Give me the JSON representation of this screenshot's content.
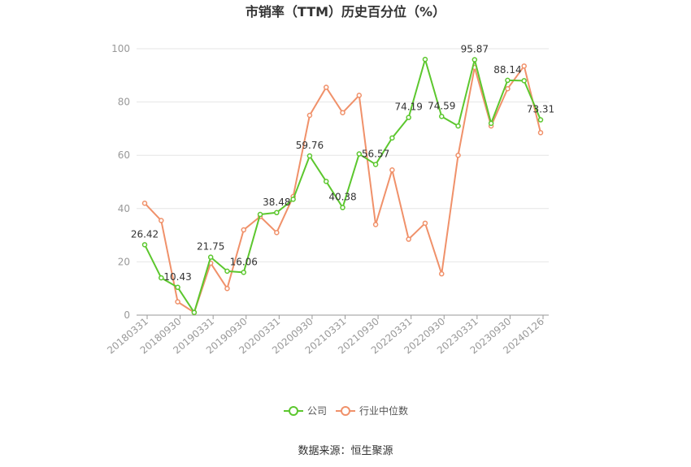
{
  "chart_data": {
    "type": "line",
    "title": "市销率（TTM）历史百分位（%）",
    "xlabel": "",
    "ylabel": "",
    "ylim": [
      0,
      100
    ],
    "yticks": [
      0,
      20,
      40,
      60,
      80,
      100
    ],
    "grid": true,
    "legend_position": "bottom-center",
    "x": [
      "20180331",
      "20180630",
      "20180930",
      "20181231",
      "20190331",
      "20190630",
      "20190930",
      "20191231",
      "20200331",
      "20200630",
      "20200930",
      "20201231",
      "20210331",
      "20210630",
      "20210930",
      "20211231",
      "20220331",
      "20220630",
      "20220930",
      "20221231",
      "20230331",
      "20230630",
      "20230930",
      "20231231",
      "20240126"
    ],
    "xtick_labels": [
      "20180331",
      "20180930",
      "20190331",
      "20190930",
      "20200331",
      "20200930",
      "20210331",
      "20210930",
      "20220331",
      "20220930",
      "20230331",
      "20230930",
      "20240126"
    ],
    "xtick_indices": [
      0,
      2,
      4,
      6,
      8,
      10,
      12,
      14,
      16,
      18,
      20,
      22,
      24
    ],
    "series": [
      {
        "name": "公司",
        "color": "#5cc72e",
        "values": [
          26.42,
          14.0,
          10.43,
          1.0,
          21.75,
          16.5,
          16.06,
          37.8,
          38.48,
          43.5,
          59.76,
          50.2,
          40.38,
          60.5,
          56.57,
          66.5,
          74.19,
          96.0,
          74.59,
          71.0,
          95.87,
          72.0,
          88.14,
          88.0,
          73.31
        ],
        "labels": {
          "0": "26.42",
          "2": "10.43",
          "4": "21.75",
          "6": "16.06",
          "8": "38.48",
          "10": "59.76",
          "12": "40.38",
          "14": "56.57",
          "16": "74.19",
          "18": "74.59",
          "20": "95.87",
          "22": "88.14",
          "24": "73.31"
        }
      },
      {
        "name": "行业中位数",
        "color": "#f0916a",
        "values": [
          42.0,
          35.5,
          5.0,
          1.0,
          19.5,
          10.0,
          32.0,
          37.0,
          31.0,
          44.5,
          75.0,
          85.5,
          76.0,
          82.5,
          34.0,
          54.5,
          28.5,
          34.5,
          15.5,
          60.0,
          93.0,
          71.0,
          85.0,
          93.5,
          68.5
        ]
      }
    ]
  },
  "source": "数据来源：恒生聚源"
}
